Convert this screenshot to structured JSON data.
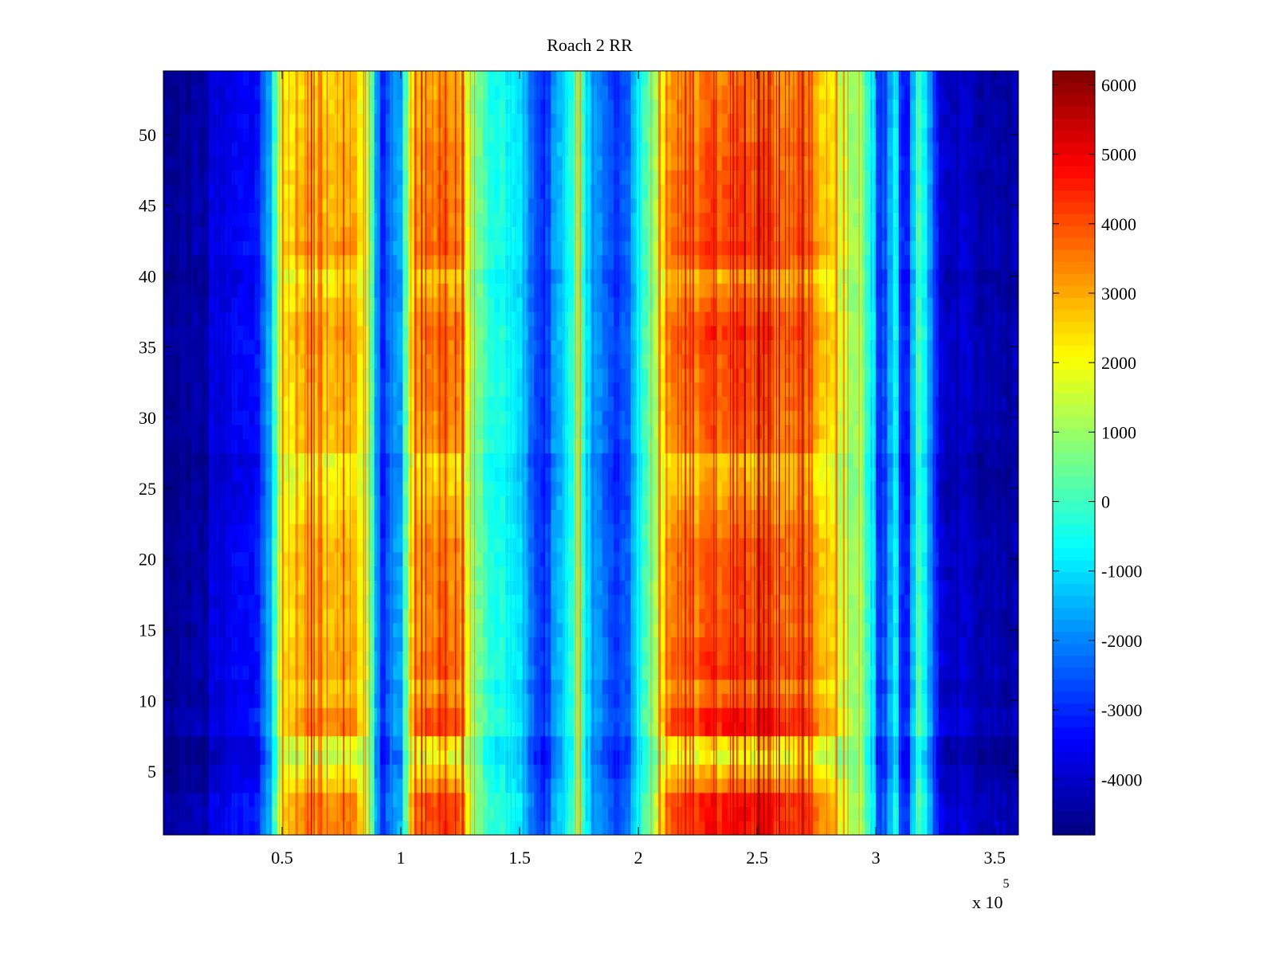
{
  "chart_data": {
    "type": "heatmap",
    "title": "Roach 2 RR",
    "xlabel": "",
    "ylabel": "",
    "colormap": "jet",
    "grid": false,
    "xlim": [
      0,
      360000
    ],
    "ylim": [
      0.5,
      54.5
    ],
    "x_exponent_label": "x 10",
    "x_exponent_power": "5",
    "x_ticks": [
      {
        "value": 50000,
        "label": "0.5"
      },
      {
        "value": 100000,
        "label": "1"
      },
      {
        "value": 150000,
        "label": "1.5"
      },
      {
        "value": 200000,
        "label": "2"
      },
      {
        "value": 250000,
        "label": "2.5"
      },
      {
        "value": 300000,
        "label": "3"
      },
      {
        "value": 350000,
        "label": "3.5"
      }
    ],
    "y_ticks": [
      {
        "value": 5,
        "label": "5"
      },
      {
        "value": 10,
        "label": "10"
      },
      {
        "value": 15,
        "label": "15"
      },
      {
        "value": 20,
        "label": "20"
      },
      {
        "value": 25,
        "label": "25"
      },
      {
        "value": 30,
        "label": "30"
      },
      {
        "value": 35,
        "label": "35"
      },
      {
        "value": 40,
        "label": "40"
      },
      {
        "value": 45,
        "label": "45"
      },
      {
        "value": 50,
        "label": "50"
      }
    ],
    "colorbar": {
      "clim": [
        -4800,
        6200
      ],
      "ticks": [
        {
          "value": 6000,
          "label": "6000"
        },
        {
          "value": 5000,
          "label": "5000"
        },
        {
          "value": 4000,
          "label": "4000"
        },
        {
          "value": 3000,
          "label": "3000"
        },
        {
          "value": 2000,
          "label": "2000"
        },
        {
          "value": 1000,
          "label": "1000"
        },
        {
          "value": 0,
          "label": "0"
        },
        {
          "value": -1000,
          "label": "-1000"
        },
        {
          "value": -2000,
          "label": "-2000"
        },
        {
          "value": -3000,
          "label": "-3000"
        },
        {
          "value": -4000,
          "label": "-4000"
        }
      ]
    },
    "rows": 54,
    "column_profile": {
      "x": [
        0,
        18000,
        19000,
        40000,
        45000,
        50000,
        60000,
        80000,
        87000,
        92000,
        100000,
        105000,
        110000,
        120000,
        125000,
        130000,
        140000,
        148000,
        155000,
        160000,
        168000,
        175000,
        180000,
        190000,
        195000,
        200000,
        208000,
        213000,
        225000,
        240000,
        255000,
        270000,
        280000,
        290000,
        298000,
        302000,
        308000,
        312000,
        318000,
        322000,
        327000,
        345000,
        360000
      ],
      "values": [
        -4600,
        -4500,
        -4000,
        -3400,
        -1500,
        1800,
        2600,
        2600,
        600,
        -3000,
        -1500,
        2500,
        3000,
        3100,
        3300,
        600,
        -500,
        -700,
        -2200,
        -3000,
        -1200,
        500,
        -1600,
        -2800,
        -2600,
        -900,
        1200,
        2800,
        3300,
        3800,
        3500,
        3000,
        2200,
        1000,
        -400,
        -3500,
        -500,
        -4000,
        0,
        -1500,
        -4000,
        -4300,
        -4400
      ]
    },
    "row_modulation": {
      "rows": [
        1,
        2,
        3,
        4,
        5,
        6,
        7,
        8,
        9,
        10,
        11,
        12,
        13,
        14,
        15,
        20,
        21,
        25,
        26,
        27,
        28,
        35,
        36,
        37,
        40,
        41,
        42,
        43,
        48,
        49,
        50,
        54
      ],
      "values": [
        1.3,
        1.3,
        1.3,
        1.0,
        0.8,
        0.55,
        0.7,
        1.3,
        1.3,
        1.1,
        1.0,
        1.2,
        1.2,
        1.15,
        1.1,
        1.1,
        1.1,
        0.85,
        0.8,
        0.75,
        1.05,
        1.15,
        1.2,
        1.15,
        0.85,
        1.1,
        1.2,
        1.15,
        1.1,
        1.1,
        1.05,
        1.0
      ]
    }
  }
}
